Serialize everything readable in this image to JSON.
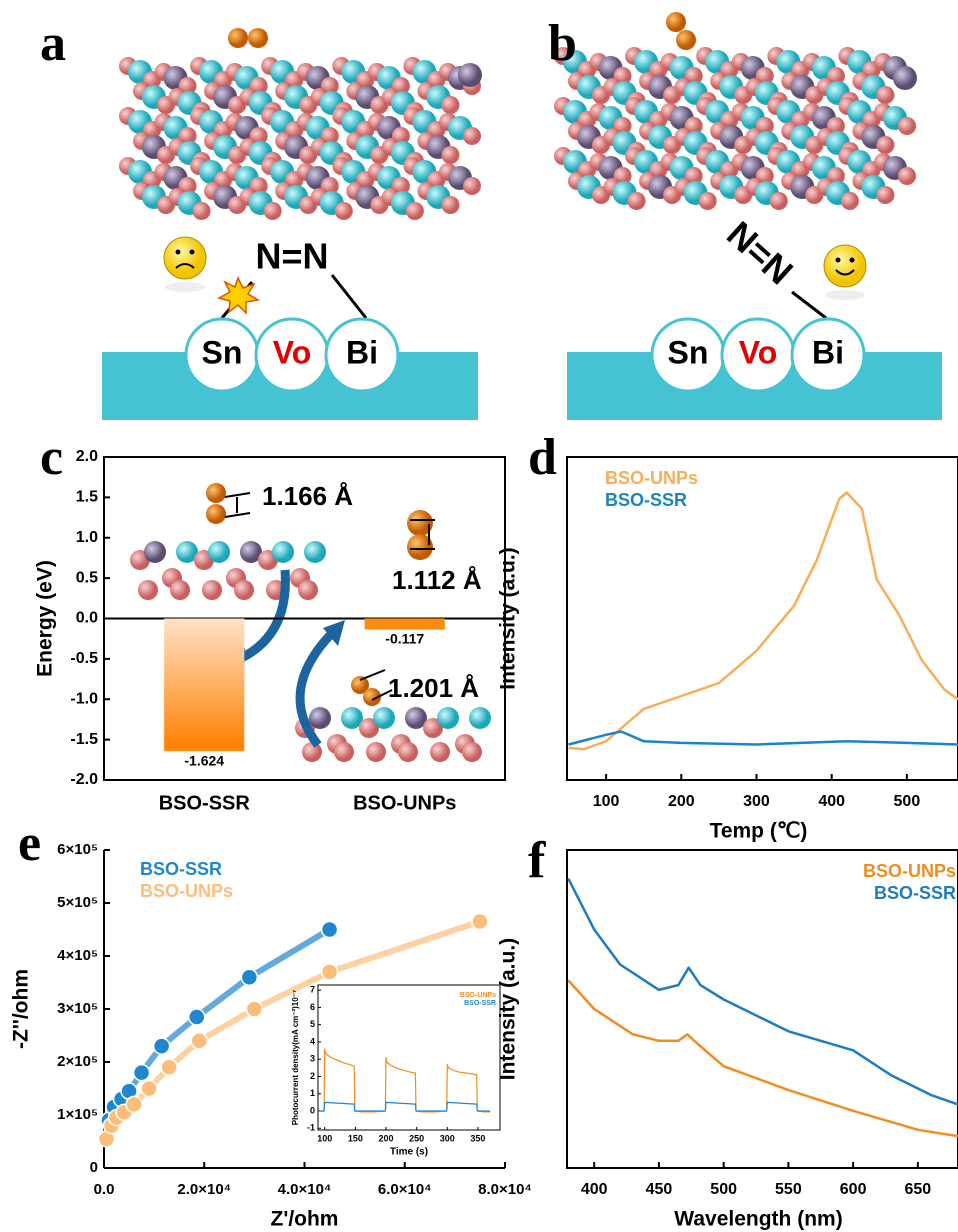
{
  "panels": [
    {
      "label": "a",
      "bond": "N=N",
      "sites": [
        "Sn",
        "Vo",
        "Bi"
      ]
    },
    {
      "label": "b",
      "bond": "N=N",
      "sites": [
        "Sn",
        "Vo",
        "Bi"
      ]
    }
  ],
  "chart_data": [
    {
      "type": "bar",
      "panel": "c",
      "ylabel": "Energy (eV)",
      "categories": [
        "BSO-SSR",
        "BSO-UNPs"
      ],
      "values": [
        -1.624,
        -0.117
      ],
      "color": "#ff8a10",
      "ylim": [
        -2,
        2
      ],
      "yticks": [
        {
          "value": -2,
          "label": "-2.0"
        },
        {
          "value": -1.5,
          "label": "-1.5"
        },
        {
          "value": -1,
          "label": "-1.0"
        },
        -0.5,
        {
          "value": 0,
          "label": "0.0"
        },
        0.5,
        {
          "value": 1,
          "label": "1.0"
        },
        1.5,
        {
          "value": 2,
          "label": "2.0"
        }
      ],
      "annotations": [
        "1.166 Å",
        "1.112 Å",
        "1.201 Å"
      ]
    },
    {
      "type": "line",
      "panel": "d",
      "xlabel": "Temp (℃)",
      "ylabel": "Intensity (a.u.)",
      "xlim": [
        48,
        568
      ],
      "xticks": [
        100,
        200,
        300,
        400,
        500
      ],
      "ylim": [
        0,
        1
      ],
      "legend": "upper left",
      "series": [
        {
          "name": "BSO-UNPs",
          "color": "#f8ad57",
          "x": [
            50,
            70,
            100,
            150,
            200,
            250,
            300,
            350,
            380,
            410,
            420,
            440,
            460,
            490,
            520,
            550,
            568
          ],
          "values": [
            0.1,
            0.095,
            0.12,
            0.22,
            0.26,
            0.3,
            0.4,
            0.54,
            0.68,
            0.87,
            0.89,
            0.84,
            0.62,
            0.51,
            0.37,
            0.28,
            0.25
          ]
        },
        {
          "name": "BSO-SSR",
          "color": "#1b84c8",
          "x": [
            50,
            100,
            120,
            150,
            200,
            300,
            420,
            500,
            568
          ],
          "values": [
            0.11,
            0.14,
            0.15,
            0.12,
            0.115,
            0.11,
            0.12,
            0.115,
            0.11
          ]
        }
      ]
    },
    {
      "type": "line",
      "panel": "e",
      "xlabel": "Z'/ohm",
      "ylabel": "-Z''/ohm",
      "markers": true,
      "xlim": [
        0,
        80000
      ],
      "ylim": [
        0,
        600000
      ],
      "legend": "upper left",
      "xticks": [
        {
          "value": 0,
          "label": "0.0"
        },
        {
          "value": 20000,
          "label": "2.0×10⁴"
        },
        {
          "value": 40000,
          "label": "4.0×10⁴"
        },
        {
          "value": 60000,
          "label": "6.0×10⁴"
        },
        {
          "value": 80000,
          "label": "8.0×10⁴"
        }
      ],
      "yticks": [
        0,
        {
          "value": 100000,
          "label": "1×10⁵"
        },
        {
          "value": 200000,
          "label": "2×10⁵"
        },
        {
          "value": 300000,
          "label": "3×10⁵"
        },
        {
          "value": 400000,
          "label": "4×10⁵"
        },
        {
          "value": 500000,
          "label": "5×10⁵"
        },
        {
          "value": 600000,
          "label": "6×10⁵"
        }
      ],
      "series": [
        {
          "name": "BSO-SSR",
          "color": "#1f86cf",
          "x": [
            1000,
            2000,
            3500,
            5000,
            7500,
            11500,
            18500,
            29000,
            45000
          ],
          "values": [
            90000,
            115000,
            130000,
            145000,
            180000,
            230000,
            285000,
            360000,
            450000
          ]
        },
        {
          "name": "BSO-UNPs",
          "color": "#fdbd7a",
          "x": [
            500,
            1500,
            2500,
            4000,
            6000,
            9000,
            13000,
            19000,
            30000,
            45000,
            75000
          ],
          "values": [
            55000,
            80000,
            95000,
            105000,
            120000,
            150000,
            190000,
            240000,
            300000,
            370000,
            465000
          ]
        }
      ]
    },
    {
      "type": "line",
      "xlabel": "Time (s)",
      "ylabel": "Photocurrent density(mA cm⁻²)10⁻⁷",
      "xlim": [
        89,
        386
      ],
      "xticks": [
        100,
        150,
        200,
        250,
        300,
        350
      ],
      "ylim": [
        -1.1,
        7.3
      ],
      "yticks": [
        -1,
        0,
        1,
        2,
        3,
        4,
        5,
        6,
        7
      ],
      "legend": "upper right",
      "series": [
        {
          "name": "BSO-UNPs",
          "color": "#f28c1e",
          "x": [
            90,
            99,
            100,
            102,
            110,
            120,
            130,
            140,
            148,
            149,
            160,
            180,
            199,
            200,
            202,
            210,
            220,
            230,
            240,
            248,
            249,
            260,
            280,
            299,
            300,
            302,
            310,
            320,
            330,
            340,
            348,
            349,
            360,
            370
          ],
          "values": [
            0,
            0,
            3.6,
            3.3,
            3.1,
            2.95,
            2.8,
            2.7,
            2.6,
            0,
            -0.05,
            -0.05,
            0,
            3.1,
            2.8,
            2.6,
            2.45,
            2.35,
            2.25,
            2.2,
            0,
            -0.05,
            -0.05,
            0,
            2.7,
            2.5,
            2.35,
            2.25,
            2.2,
            2.15,
            2.1,
            0,
            -0.05,
            -0.05
          ]
        },
        {
          "name": "BSO-SSR",
          "color": "#1f86cf",
          "x": [
            90,
            99,
            100,
            148,
            149,
            199,
            200,
            248,
            249,
            299,
            300,
            348,
            349,
            370
          ],
          "values": [
            0,
            0,
            0.5,
            0.4,
            0,
            0,
            0.5,
            0.4,
            0,
            0,
            0.5,
            0.4,
            0,
            0
          ]
        }
      ]
    },
    {
      "type": "line",
      "panel": "f",
      "xlabel": "Wavelength (nm)",
      "ylabel": "Intensity (a.u.)",
      "xlim": [
        379,
        681
      ],
      "xticks": [
        400,
        450,
        500,
        550,
        600,
        650
      ],
      "ylim": [
        0,
        1
      ],
      "legend": "upper right",
      "series": [
        {
          "name": "BSO-UNPs",
          "color": "#f28c1e",
          "x": [
            380,
            400,
            430,
            450,
            465,
            472,
            480,
            500,
            550,
            600,
            650,
            681
          ],
          "values": [
            0.59,
            0.5,
            0.42,
            0.4,
            0.4,
            0.42,
            0.39,
            0.32,
            0.245,
            0.18,
            0.12,
            0.1
          ]
        },
        {
          "name": "BSO-SSR",
          "color": "#1f7cc4",
          "x": [
            380,
            400,
            420,
            450,
            465,
            473,
            482,
            500,
            550,
            600,
            630,
            660,
            681
          ],
          "values": [
            0.91,
            0.75,
            0.64,
            0.56,
            0.575,
            0.63,
            0.575,
            0.53,
            0.43,
            0.37,
            0.29,
            0.23,
            0.2
          ]
        }
      ]
    }
  ]
}
